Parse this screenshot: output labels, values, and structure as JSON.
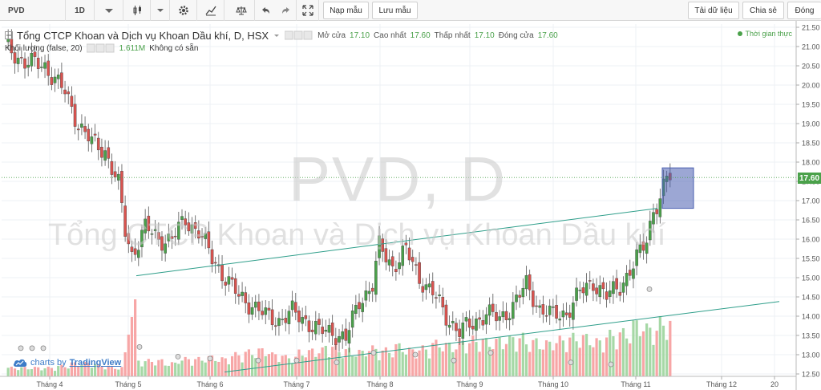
{
  "toolbar": {
    "symbol": "PVD",
    "interval": "1D",
    "load_layout": "Nạp mẫu",
    "save_layout": "Lưu mẫu",
    "download_data": "Tải dữ liệu",
    "share": "Chia sẻ",
    "close": "Đóng"
  },
  "legend": {
    "title": "Tổng CTCP Khoan và Dịch vụ Khoan Dầu khí, D, HSX",
    "open_label": "Mở cửa",
    "open": "17.10",
    "high_label": "Cao nhất",
    "high": "17.60",
    "low_label": "Thấp nhất",
    "low": "17.10",
    "close_label": "Đóng cửa",
    "close": "17.60",
    "volume_label": "Khối lượng (false, 20)",
    "volume_value": "1.611M",
    "volume_status": "Không có sẵn",
    "realtime": "Thời gian thực"
  },
  "watermark": {
    "symbol": "PVD, D",
    "company": "Tổng CTCP Khoan và Dịch vụ Khoan Dầu khí"
  },
  "branding": {
    "prefix": "charts by",
    "name": "TradingView"
  },
  "colors": {
    "up": "#4aa14a",
    "down": "#d9534f",
    "vol_up": "#a6d8a6",
    "vol_down": "#f7a6a6",
    "trendline": "#2e9e8a",
    "highlight": "#4a5fb0"
  },
  "chart_data": {
    "type": "candlestick",
    "last_price": "17.60",
    "y_ticks": [
      "21.50",
      "21.00",
      "20.50",
      "20.00",
      "19.50",
      "19.00",
      "18.50",
      "18.00",
      "17.50",
      "17.00",
      "16.50",
      "16.00",
      "15.50",
      "15.00",
      "14.50",
      "14.00",
      "13.50",
      "13.00",
      "12.50"
    ],
    "x_ticks": [
      "Tháng 4",
      "Tháng 5",
      "Tháng 6",
      "Tháng 7",
      "Tháng 8",
      "Tháng 9",
      "Tháng 10",
      "Tháng 11",
      "Tháng 12",
      "20"
    ],
    "ylim": [
      12.5,
      21.5
    ],
    "close_path": [
      [
        0,
        21.0
      ],
      [
        6,
        20.6
      ],
      [
        12,
        20.5
      ],
      [
        18,
        19.8
      ],
      [
        22,
        19.0
      ],
      [
        26,
        18.5
      ],
      [
        30,
        18.3
      ],
      [
        34,
        17.4
      ],
      [
        36,
        16.2
      ],
      [
        38,
        15.6
      ],
      [
        42,
        16.3
      ],
      [
        46,
        16.0
      ],
      [
        50,
        16.0
      ],
      [
        54,
        16.5
      ],
      [
        58,
        16.2
      ],
      [
        62,
        15.5
      ],
      [
        66,
        15.0
      ],
      [
        70,
        14.5
      ],
      [
        74,
        14.3
      ],
      [
        78,
        14.0
      ],
      [
        82,
        13.9
      ],
      [
        86,
        14.1
      ],
      [
        90,
        13.9
      ],
      [
        94,
        13.6
      ],
      [
        98,
        13.6
      ],
      [
        102,
        13.4
      ],
      [
        106,
        14.4
      ],
      [
        110,
        14.8
      ],
      [
        112,
        15.8
      ],
      [
        116,
        15.3
      ],
      [
        120,
        15.7
      ],
      [
        124,
        15.0
      ],
      [
        128,
        14.6
      ],
      [
        132,
        14.0
      ],
      [
        136,
        13.6
      ],
      [
        140,
        13.8
      ],
      [
        144,
        14.1
      ],
      [
        148,
        13.9
      ],
      [
        152,
        14.3
      ],
      [
        156,
        14.8
      ],
      [
        160,
        14.2
      ],
      [
        164,
        14.0
      ],
      [
        168,
        14.1
      ],
      [
        172,
        14.6
      ],
      [
        176,
        14.9
      ],
      [
        180,
        14.5
      ],
      [
        184,
        14.8
      ],
      [
        188,
        15.3
      ],
      [
        192,
        16.0
      ],
      [
        194,
        16.8
      ],
      [
        196,
        17.0
      ],
      [
        198,
        17.6
      ]
    ],
    "volume_profile": [
      0.1,
      0.1,
      0.1,
      0.1,
      0.12,
      0.15,
      0.15,
      0.12,
      0.1,
      0.12,
      0.18,
      0.18,
      0.15,
      0.2,
      0.2,
      0.22,
      0.2,
      0.25,
      0.28,
      0.3,
      0.25,
      0.22,
      0.28,
      0.3,
      0.35,
      0.3,
      0.28,
      0.32,
      0.3,
      0.35,
      0.3,
      0.32,
      0.38,
      0.36,
      0.4,
      0.42,
      0.4,
      0.42,
      0.45,
      0.4,
      0.38,
      0.42,
      0.45,
      0.45,
      0.4,
      0.48,
      0.5,
      0.6,
      0.55,
      0.62
    ],
    "volume_ylim": [
      0,
      1
    ]
  }
}
